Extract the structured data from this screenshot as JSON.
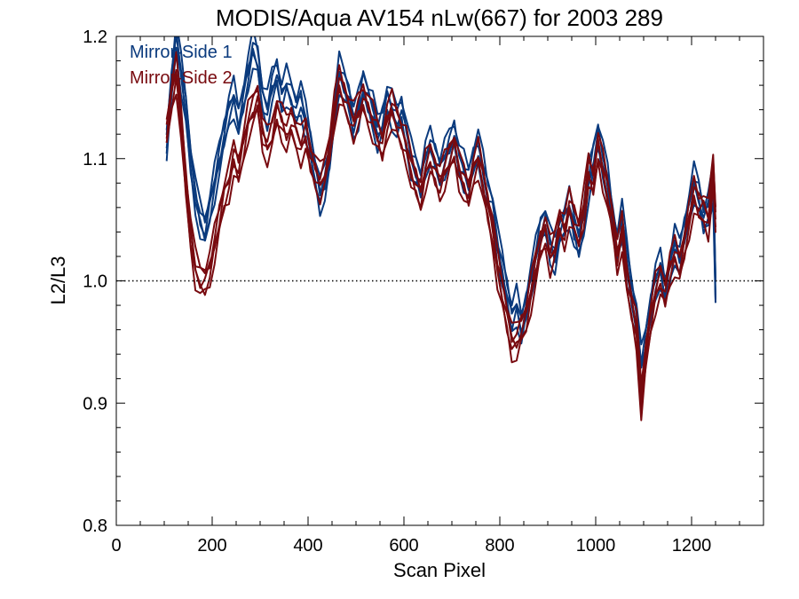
{
  "chart_data": {
    "type": "line",
    "title": "MODIS/Aqua AV154 nLw(667) for 2003 289",
    "xlabel": "Scan Pixel",
    "ylabel": "L2/L3",
    "xlim": [
      0,
      1350
    ],
    "ylim": [
      0.8,
      1.2
    ],
    "x_ticks": [
      0,
      200,
      400,
      600,
      800,
      1000,
      1200
    ],
    "x_tick_labels": [
      "0",
      "200",
      "400",
      "600",
      "800",
      "1000",
      "1200"
    ],
    "y_ticks": [
      0.8,
      0.9,
      1.0,
      1.1,
      1.2
    ],
    "y_tick_labels": [
      "0.8",
      "0.9",
      "1.0",
      "1.1",
      "1.2"
    ],
    "reference_line": {
      "y": 1.0,
      "style": "dotted"
    },
    "legend_position": "top-left",
    "x": [
      105,
      115,
      125,
      135,
      145,
      155,
      165,
      175,
      185,
      195,
      205,
      215,
      225,
      235,
      245,
      255,
      265,
      275,
      285,
      295,
      305,
      315,
      325,
      335,
      345,
      355,
      365,
      375,
      385,
      395,
      405,
      415,
      425,
      435,
      445,
      455,
      465,
      475,
      485,
      495,
      505,
      515,
      525,
      535,
      545,
      555,
      565,
      575,
      585,
      595,
      605,
      615,
      625,
      635,
      645,
      655,
      665,
      675,
      685,
      695,
      705,
      715,
      725,
      735,
      745,
      755,
      765,
      775,
      785,
      795,
      805,
      815,
      825,
      835,
      845,
      855,
      865,
      875,
      885,
      895,
      905,
      915,
      925,
      935,
      945,
      955,
      965,
      975,
      985,
      995,
      1005,
      1015,
      1025,
      1035,
      1045,
      1055,
      1065,
      1075,
      1085,
      1095,
      1105,
      1115,
      1125,
      1135,
      1145,
      1155,
      1165,
      1175,
      1185,
      1195,
      1205,
      1215,
      1225,
      1235,
      1245,
      1250
    ],
    "series": [
      {
        "name": "Mirror-Side 1",
        "color": "#0a3a7d",
        "values": [
          1.11,
          1.16,
          1.2,
          1.17,
          1.14,
          1.1,
          1.07,
          1.05,
          1.04,
          1.06,
          1.08,
          1.1,
          1.12,
          1.14,
          1.15,
          1.13,
          1.15,
          1.17,
          1.19,
          1.18,
          1.15,
          1.14,
          1.16,
          1.17,
          1.15,
          1.16,
          1.15,
          1.14,
          1.15,
          1.13,
          1.11,
          1.09,
          1.07,
          1.08,
          1.1,
          1.14,
          1.17,
          1.16,
          1.15,
          1.13,
          1.14,
          1.16,
          1.15,
          1.14,
          1.12,
          1.13,
          1.15,
          1.14,
          1.13,
          1.14,
          1.12,
          1.1,
          1.09,
          1.08,
          1.1,
          1.11,
          1.1,
          1.09,
          1.1,
          1.11,
          1.12,
          1.1,
          1.09,
          1.08,
          1.1,
          1.11,
          1.09,
          1.07,
          1.06,
          1.03,
          1.01,
          0.99,
          0.97,
          0.98,
          0.96,
          0.98,
          1.0,
          1.02,
          1.04,
          1.05,
          1.03,
          1.02,
          1.04,
          1.05,
          1.06,
          1.04,
          1.03,
          1.05,
          1.08,
          1.1,
          1.12,
          1.1,
          1.08,
          1.05,
          1.03,
          1.05,
          1.02,
          0.99,
          0.97,
          0.93,
          0.95,
          0.98,
          1.0,
          1.01,
          0.99,
          1.01,
          1.03,
          1.02,
          1.04,
          1.06,
          1.08,
          1.07,
          1.05,
          1.06,
          1.08,
          0.99
        ]
      },
      {
        "name": "Mirror-Side 2",
        "color": "#780a0f",
        "values": [
          1.12,
          1.15,
          1.17,
          1.13,
          1.08,
          1.04,
          1.01,
          1.0,
          1.0,
          1.01,
          1.03,
          1.05,
          1.07,
          1.08,
          1.1,
          1.09,
          1.11,
          1.13,
          1.14,
          1.15,
          1.12,
          1.11,
          1.12,
          1.14,
          1.13,
          1.12,
          1.13,
          1.12,
          1.11,
          1.12,
          1.1,
          1.09,
          1.08,
          1.09,
          1.11,
          1.14,
          1.16,
          1.15,
          1.14,
          1.13,
          1.14,
          1.15,
          1.14,
          1.13,
          1.12,
          1.11,
          1.13,
          1.14,
          1.13,
          1.12,
          1.11,
          1.09,
          1.08,
          1.07,
          1.09,
          1.1,
          1.09,
          1.08,
          1.09,
          1.1,
          1.11,
          1.09,
          1.08,
          1.07,
          1.09,
          1.1,
          1.08,
          1.06,
          1.04,
          1.01,
          0.99,
          0.97,
          0.95,
          0.95,
          0.96,
          0.97,
          0.99,
          1.01,
          1.03,
          1.04,
          1.02,
          1.03,
          1.05,
          1.04,
          1.06,
          1.05,
          1.04,
          1.06,
          1.09,
          1.08,
          1.11,
          1.09,
          1.07,
          1.05,
          1.02,
          1.04,
          1.0,
          0.98,
          0.96,
          0.9,
          0.94,
          0.97,
          0.99,
          1.0,
          0.99,
          1.01,
          1.02,
          1.01,
          1.03,
          1.05,
          1.07,
          1.06,
          1.06,
          1.05,
          1.09,
          1.05
        ]
      }
    ]
  }
}
